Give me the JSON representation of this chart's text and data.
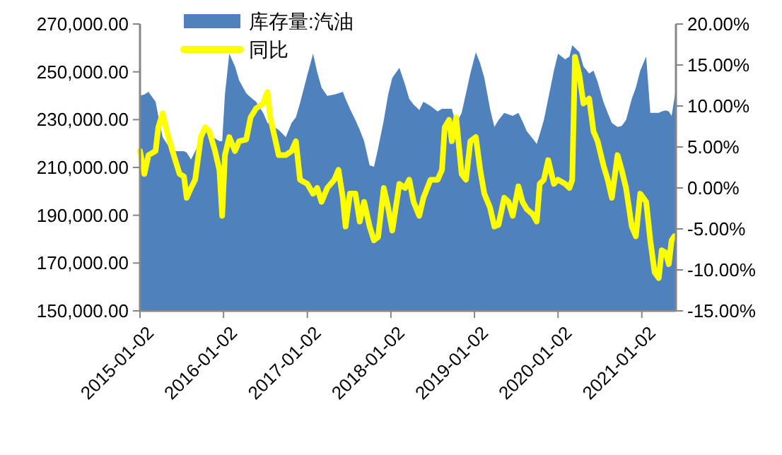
{
  "chart_data": {
    "type": "area",
    "xlim": [
      "2015-01-02",
      "2021-05-31"
    ],
    "xticks": [
      "2015-01-02",
      "2016-01-02",
      "2017-01-02",
      "2018-01-02",
      "2019-01-02",
      "2020-01-02",
      "2021-01-02"
    ],
    "ylim": [
      150000,
      270000
    ],
    "yticks": [
      {
        "value": 150000,
        "label": "150,000.00"
      },
      {
        "value": 170000,
        "label": "170,000.00"
      },
      {
        "value": 190000,
        "label": "190,000.00"
      },
      {
        "value": 210000,
        "label": "210,000.00"
      },
      {
        "value": 230000,
        "label": "230,000.00"
      },
      {
        "value": 250000,
        "label": "250,000.00"
      },
      {
        "value": 270000,
        "label": "270,000.00"
      }
    ],
    "y2lim": [
      -15,
      20
    ],
    "y2ticks": [
      {
        "value": -15,
        "label": "-15.00%"
      },
      {
        "value": -10,
        "label": "-10.00%"
      },
      {
        "value": -5,
        "label": "-5.00%"
      },
      {
        "value": 0,
        "label": "0.00%"
      },
      {
        "value": 5,
        "label": "5.00%"
      },
      {
        "value": 10,
        "label": "10.00%"
      },
      {
        "value": 15,
        "label": "15.00%"
      },
      {
        "value": 20,
        "label": "20.00%"
      }
    ],
    "legend": "top left",
    "grid": false,
    "series": [
      {
        "name": "库存量:汽油",
        "color": "#4f81bd",
        "x": [
          "2015-01-02",
          "2015-01-21",
          "2015-02-08",
          "2015-03-11",
          "2015-03-23",
          "2015-04-11",
          "2015-04-30",
          "2015-05-24",
          "2015-06-24",
          "2015-07-13",
          "2015-07-25",
          "2015-08-13",
          "2015-08-31",
          "2015-09-25",
          "2015-10-14",
          "2015-11-01",
          "2015-11-26",
          "2015-12-15",
          "2015-12-27",
          "2016-01-08",
          "2016-01-27",
          "2016-02-21",
          "2016-03-10",
          "2016-04-10",
          "2016-04-29",
          "2016-05-23",
          "2016-06-23",
          "2016-07-12",
          "2016-07-24",
          "2016-08-30",
          "2016-09-30",
          "2016-10-25",
          "2016-11-13",
          "2016-12-01",
          "2017-01-02",
          "2017-01-27",
          "2017-02-14",
          "2017-03-05",
          "2017-03-30",
          "2017-04-30",
          "2017-05-18",
          "2017-06-06",
          "2017-06-18",
          "2017-07-07",
          "2017-07-31",
          "2017-08-19",
          "2017-09-07",
          "2017-10-01",
          "2017-10-20",
          "2017-11-07",
          "2017-12-02",
          "2017-12-21",
          "2018-01-08",
          "2018-02-08",
          "2018-03-05",
          "2018-03-23",
          "2018-04-11",
          "2018-05-06",
          "2018-05-24",
          "2018-06-24",
          "2018-07-25",
          "2018-08-13",
          "2018-08-25",
          "2018-09-13",
          "2018-09-25",
          "2018-10-14",
          "2018-11-07",
          "2018-11-26",
          "2018-12-15",
          "2019-01-08",
          "2019-01-27",
          "2019-02-14",
          "2019-03-11",
          "2019-03-30",
          "2019-04-17",
          "2019-05-12",
          "2019-05-31",
          "2019-06-18",
          "2019-07-13",
          "2019-07-31",
          "2019-08-19",
          "2019-09-13",
          "2019-10-01",
          "2019-10-14",
          "2019-11-01",
          "2019-11-20",
          "2019-12-15",
          "2020-01-02",
          "2020-02-02",
          "2020-02-21",
          "2020-03-04",
          "2020-03-16",
          "2020-04-04",
          "2020-04-22",
          "2020-05-17",
          "2020-06-05",
          "2020-06-23",
          "2020-07-18",
          "2020-08-06",
          "2020-08-24",
          "2020-09-18",
          "2020-10-06",
          "2020-10-25",
          "2020-11-19",
          "2020-12-07",
          "2020-12-26",
          "2021-01-21",
          "2021-02-08",
          "2021-02-27",
          "2021-03-17",
          "2021-03-30",
          "2021-04-17",
          "2021-04-30",
          "2021-05-12",
          "2021-05-31"
        ],
        "values": [
          240000,
          240500,
          241600,
          237500,
          231600,
          222700,
          219800,
          216800,
          216800,
          216800,
          216200,
          213300,
          216800,
          221000,
          225100,
          223900,
          222100,
          221000,
          221000,
          240500,
          257600,
          252300,
          246400,
          241000,
          239300,
          237500,
          232800,
          228600,
          228000,
          225700,
          222700,
          228600,
          231000,
          236900,
          248700,
          257600,
          249900,
          243400,
          239900,
          240500,
          241000,
          241600,
          238700,
          234500,
          229800,
          225700,
          221000,
          210900,
          210300,
          218000,
          229800,
          240500,
          247500,
          251700,
          244600,
          238700,
          236300,
          234000,
          237500,
          235700,
          233400,
          234500,
          234500,
          234500,
          234500,
          228000,
          232800,
          241000,
          249300,
          258200,
          253500,
          247500,
          234500,
          226900,
          229800,
          232800,
          232200,
          231600,
          232800,
          229200,
          225100,
          222100,
          219800,
          223900,
          229800,
          238700,
          250500,
          257600,
          255200,
          256400,
          261100,
          260000,
          258200,
          252300,
          249300,
          250500,
          245800,
          237500,
          232800,
          228600,
          226900,
          227400,
          229800,
          238700,
          243400,
          250500,
          256400,
          232800,
          232800,
          232800,
          233400,
          233900,
          233400,
          231600,
          242800
        ]
      },
      {
        "name": "同比",
        "type": "line",
        "axis": "y2",
        "color": "#ffff00",
        "x": [
          "2015-01-02",
          "2015-01-21",
          "2015-02-08",
          "2015-03-11",
          "2015-03-23",
          "2015-04-11",
          "2015-04-30",
          "2015-05-24",
          "2015-06-24",
          "2015-07-13",
          "2015-07-25",
          "2015-08-13",
          "2015-08-31",
          "2015-09-25",
          "2015-10-14",
          "2015-11-01",
          "2015-11-26",
          "2015-12-15",
          "2015-12-27",
          "2016-01-08",
          "2016-01-27",
          "2016-02-21",
          "2016-03-10",
          "2016-04-10",
          "2016-04-29",
          "2016-05-23",
          "2016-06-23",
          "2016-07-12",
          "2016-07-24",
          "2016-08-30",
          "2016-09-30",
          "2016-10-25",
          "2016-11-13",
          "2016-12-01",
          "2017-01-02",
          "2017-01-27",
          "2017-02-14",
          "2017-03-05",
          "2017-03-30",
          "2017-04-30",
          "2017-05-18",
          "2017-06-06",
          "2017-06-18",
          "2017-07-07",
          "2017-07-31",
          "2017-08-19",
          "2017-09-07",
          "2017-10-01",
          "2017-10-20",
          "2017-11-07",
          "2017-12-02",
          "2017-12-21",
          "2018-01-08",
          "2018-02-08",
          "2018-03-05",
          "2018-03-23",
          "2018-04-11",
          "2018-05-06",
          "2018-05-24",
          "2018-06-24",
          "2018-07-25",
          "2018-08-13",
          "2018-08-25",
          "2018-09-13",
          "2018-09-25",
          "2018-10-14",
          "2018-11-07",
          "2018-11-26",
          "2018-12-15",
          "2019-01-08",
          "2019-01-27",
          "2019-02-14",
          "2019-03-11",
          "2019-03-30",
          "2019-04-17",
          "2019-05-12",
          "2019-05-31",
          "2019-06-18",
          "2019-07-13",
          "2019-07-31",
          "2019-08-19",
          "2019-09-13",
          "2019-10-01",
          "2019-10-14",
          "2019-11-01",
          "2019-11-20",
          "2019-12-15",
          "2020-01-02",
          "2020-02-02",
          "2020-02-21",
          "2020-03-04",
          "2020-03-16",
          "2020-04-04",
          "2020-04-22",
          "2020-05-17",
          "2020-06-05",
          "2020-06-23",
          "2020-07-18",
          "2020-08-06",
          "2020-08-24",
          "2020-09-18",
          "2020-10-06",
          "2020-10-25",
          "2020-11-19",
          "2020-12-07",
          "2020-12-26",
          "2021-01-21",
          "2021-02-08",
          "2021-02-27",
          "2021-03-17",
          "2021-03-30",
          "2021-04-17",
          "2021-04-30",
          "2021-05-12",
          "2021-05-24"
        ],
        "values": [
          4.5,
          1.7,
          4.0,
          4.5,
          7.4,
          9.1,
          6.9,
          4.5,
          1.7,
          1.4,
          -1.2,
          0.0,
          1.0,
          6.2,
          7.4,
          6.9,
          4.5,
          2.2,
          -3.4,
          4.0,
          6.2,
          4.5,
          5.7,
          5.9,
          8.6,
          9.7,
          10.3,
          11.7,
          8.6,
          4.0,
          4.0,
          4.5,
          5.7,
          1.0,
          0.5,
          -0.7,
          0.0,
          -1.7,
          0.0,
          1.0,
          2.2,
          -1.2,
          -4.7,
          -0.7,
          -0.7,
          -4.1,
          -1.7,
          -4.7,
          -6.4,
          -6.0,
          0.0,
          -2.4,
          -5.2,
          0.5,
          0.0,
          1.0,
          -1.7,
          -3.4,
          -1.2,
          1.0,
          1.0,
          2.2,
          7.4,
          8.3,
          5.7,
          8.6,
          1.7,
          1.0,
          5.7,
          6.2,
          2.2,
          -0.7,
          -2.4,
          -4.7,
          -4.5,
          -1.2,
          -1.7,
          -3.4,
          0.2,
          -1.7,
          -2.6,
          -3.2,
          -4.1,
          0.5,
          1.0,
          3.4,
          0.5,
          1.0,
          0.5,
          0.0,
          1.0,
          16.0,
          13.8,
          10.3,
          10.9,
          6.9,
          5.7,
          2.8,
          1.0,
          -1.2,
          4.0,
          2.2,
          0.0,
          -4.7,
          -5.9,
          -0.7,
          -1.7,
          -6.4,
          -10.3,
          -11.0,
          -7.6,
          -7.9,
          -9.3,
          -6.4,
          -5.9
        ]
      }
    ]
  }
}
